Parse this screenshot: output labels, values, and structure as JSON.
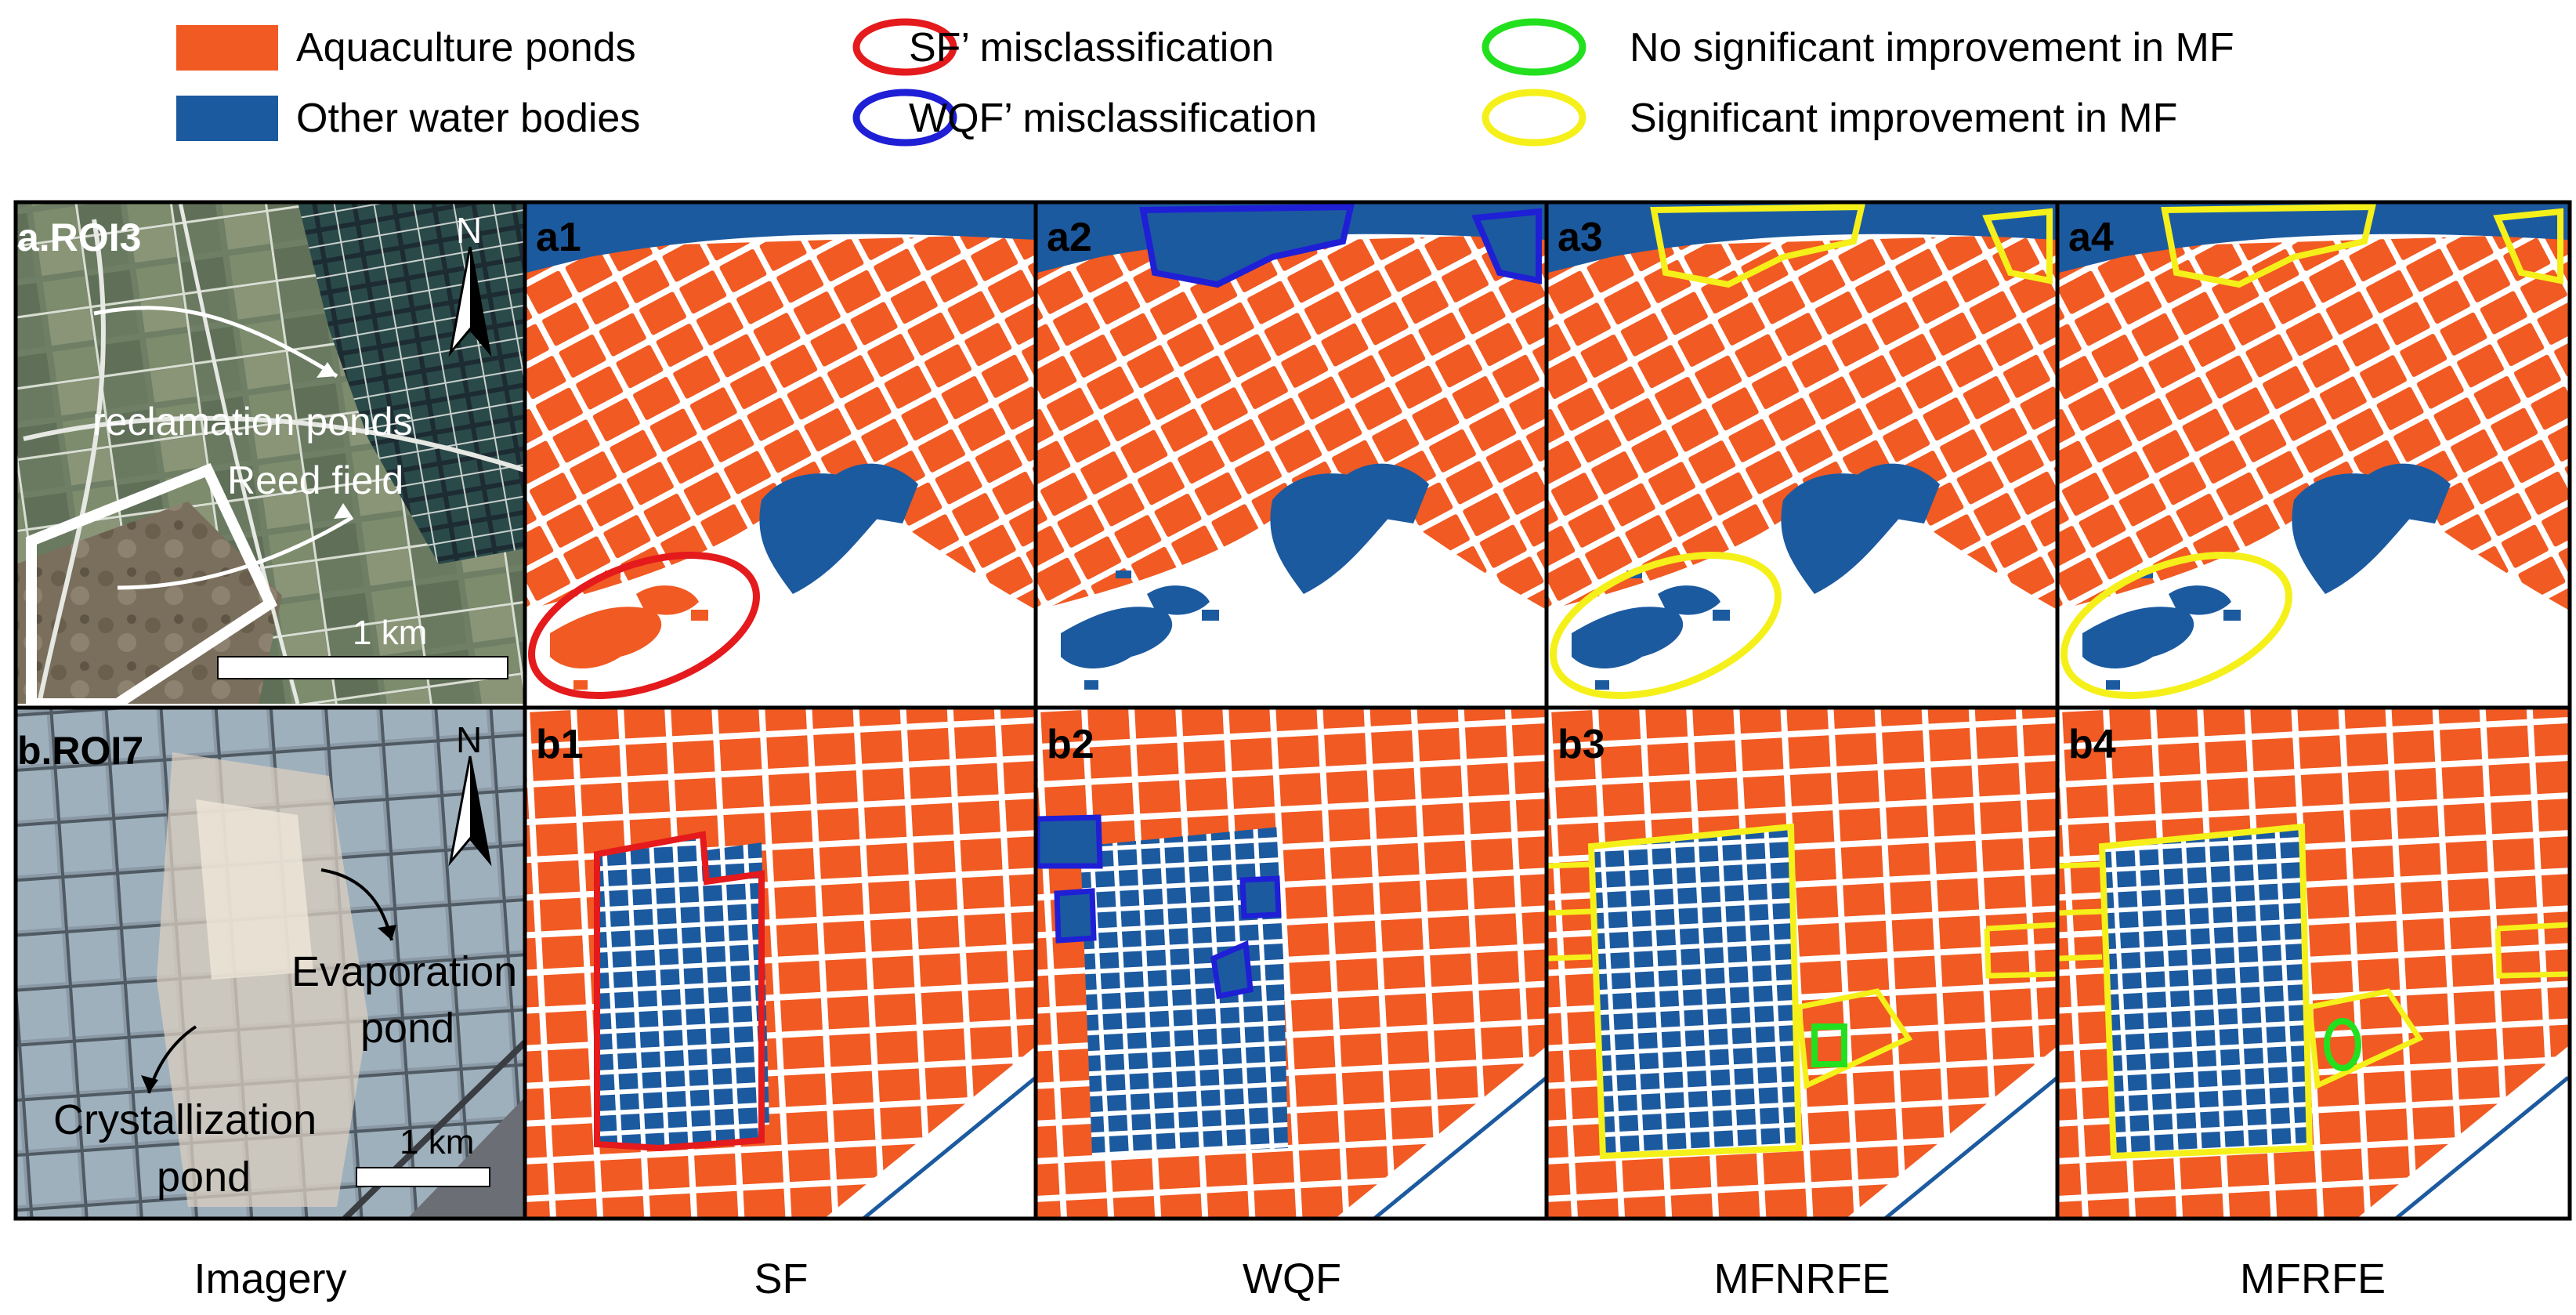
{
  "legend": {
    "items": [
      {
        "label": "Aquaculture ponds",
        "swatch": "fill",
        "color": "#f15a22"
      },
      {
        "label": "Other water bodies",
        "swatch": "fill",
        "color": "#1c5aa0"
      },
      {
        "label": "SF’ misclassification",
        "swatch": "ellipse",
        "color": "#e41a1c"
      },
      {
        "label": "WQF’ misclassification",
        "swatch": "ellipse",
        "color": "#1f1fd6"
      },
      {
        "label": "No significant improvement in MF",
        "swatch": "ellipse",
        "color": "#22e01e"
      },
      {
        "label": "Significant improvement in MF",
        "swatch": "ellipse",
        "color": "#f5f01a"
      }
    ]
  },
  "rows": [
    {
      "imagery_label": "a.ROI3",
      "annotations": [
        "reclamation ponds",
        "Reed field"
      ],
      "north": "N",
      "scale": "1 km",
      "panels": [
        "a1",
        "a2",
        "a3",
        "a4"
      ]
    },
    {
      "imagery_label": "b.ROI7",
      "annotations": [
        "Evaporation",
        "pond",
        "Crystallization",
        "pond"
      ],
      "north": "N",
      "scale": "1 km",
      "panels": [
        "b1",
        "b2",
        "b3",
        "b4"
      ]
    }
  ],
  "columns": [
    "Imagery",
    "SF",
    "WQF",
    "MFNRFE",
    "MFRFE"
  ],
  "colors": {
    "aquaculture": "#f15a22",
    "water": "#1c5aa0",
    "sf_mis": "#e41a1c",
    "wqf_mis": "#1f1fd6",
    "no_improve": "#22e01e",
    "improve": "#f5f01a"
  }
}
